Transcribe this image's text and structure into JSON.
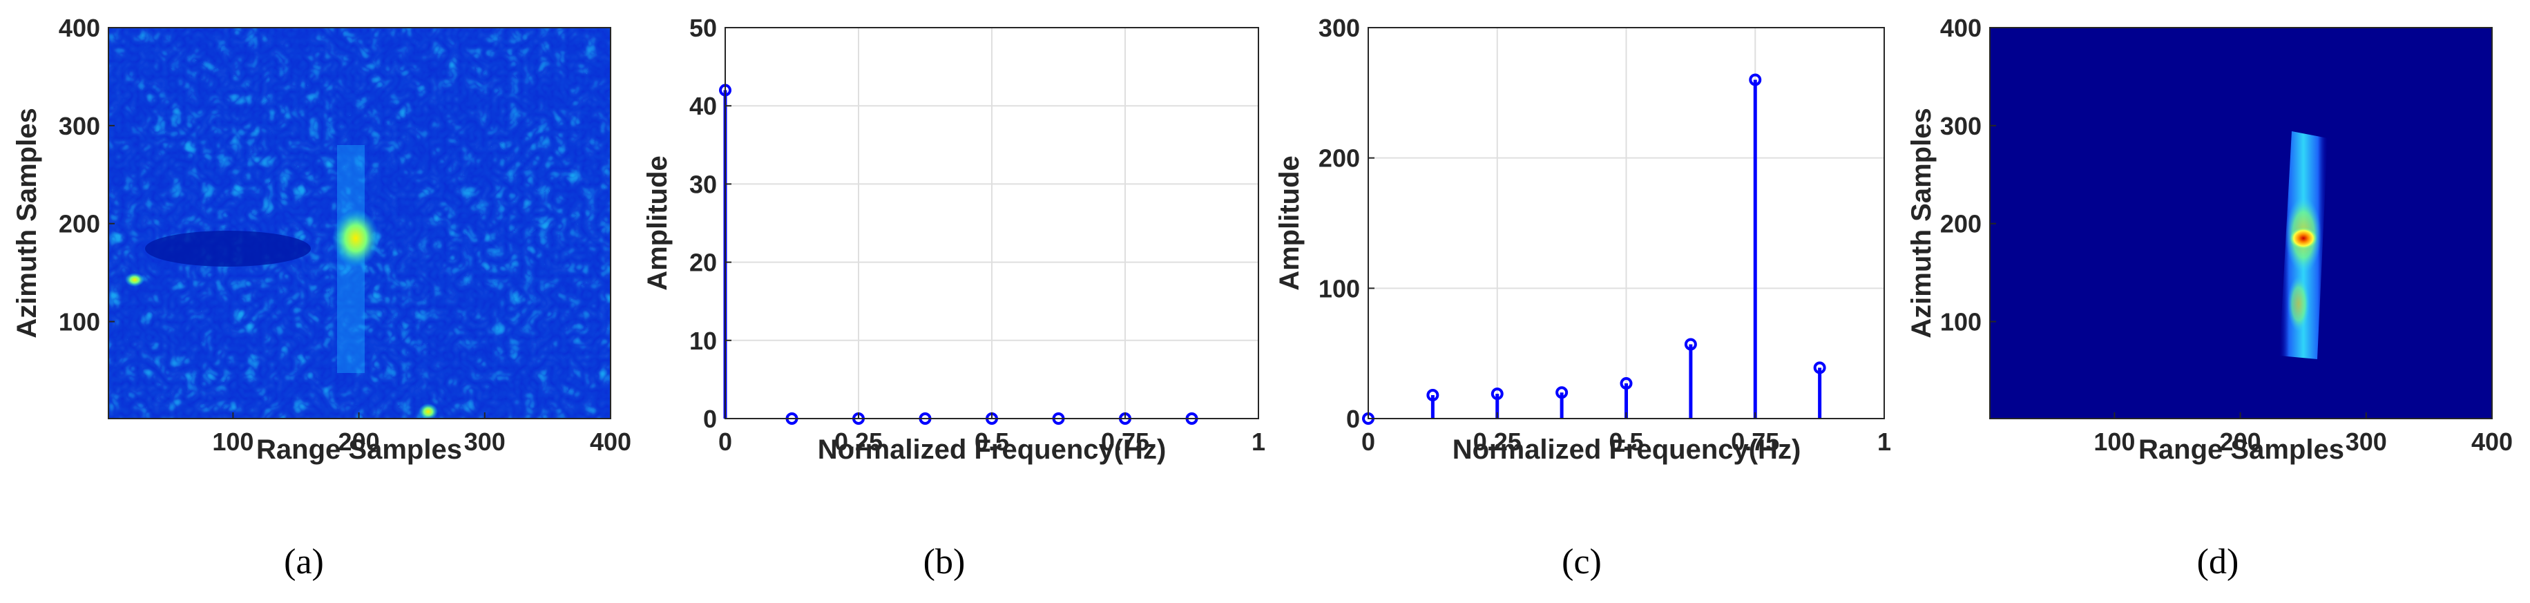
{
  "chart_data": [
    {
      "type": "heatmap",
      "panel": "(a)",
      "description_colormap": "jet",
      "xlabel": "Range Samples",
      "ylabel": "Azimuth Samples",
      "xlim": [
        1,
        400
      ],
      "ylim": [
        1,
        400
      ],
      "xticks": [
        100,
        200,
        300,
        400
      ],
      "yticks": [
        100,
        200,
        300,
        400
      ],
      "grid": false
    },
    {
      "type": "stem",
      "panel": "(b)",
      "xlabel": "Normalized Frequency(Hz)",
      "ylabel": "Amplitude",
      "xlim": [
        0,
        1
      ],
      "ylim": [
        0,
        50
      ],
      "xticks": [
        0,
        0.25,
        0.5,
        0.75,
        1
      ],
      "xticklabels": [
        "0",
        "0.25",
        "0.5",
        "0.75",
        "1"
      ],
      "yticks": [
        0,
        10,
        20,
        30,
        40,
        50
      ],
      "grid": true,
      "x": [
        0,
        0.125,
        0.25,
        0.375,
        0.5,
        0.625,
        0.75,
        0.875
      ],
      "values": [
        42,
        0,
        0,
        0,
        0,
        0,
        0,
        0
      ],
      "color": "#0000ff"
    },
    {
      "type": "stem",
      "panel": "(c)",
      "xlabel": "Normalized Frequency(Hz)",
      "ylabel": "Amplitude",
      "xlim": [
        0,
        1
      ],
      "ylim": [
        0,
        300
      ],
      "xticks": [
        0,
        0.25,
        0.5,
        0.75,
        1
      ],
      "xticklabels": [
        "0",
        "0.25",
        "0.5",
        "0.75",
        "1"
      ],
      "yticks": [
        0,
        100,
        200,
        300
      ],
      "grid": true,
      "x": [
        0,
        0.125,
        0.25,
        0.375,
        0.5,
        0.625,
        0.75,
        0.875
      ],
      "values": [
        0,
        18,
        19,
        20,
        27,
        57,
        260,
        39
      ],
      "color": "#0000ff"
    },
    {
      "type": "heatmap",
      "panel": "(d)",
      "description_colormap": "jet",
      "xlabel": "Range Samples",
      "ylabel": "Azimuth Samples",
      "xlim": [
        1,
        400
      ],
      "ylim": [
        1,
        400
      ],
      "xticks": [
        100,
        200,
        300,
        400
      ],
      "yticks": [
        100,
        200,
        300,
        400
      ],
      "grid": false
    }
  ]
}
